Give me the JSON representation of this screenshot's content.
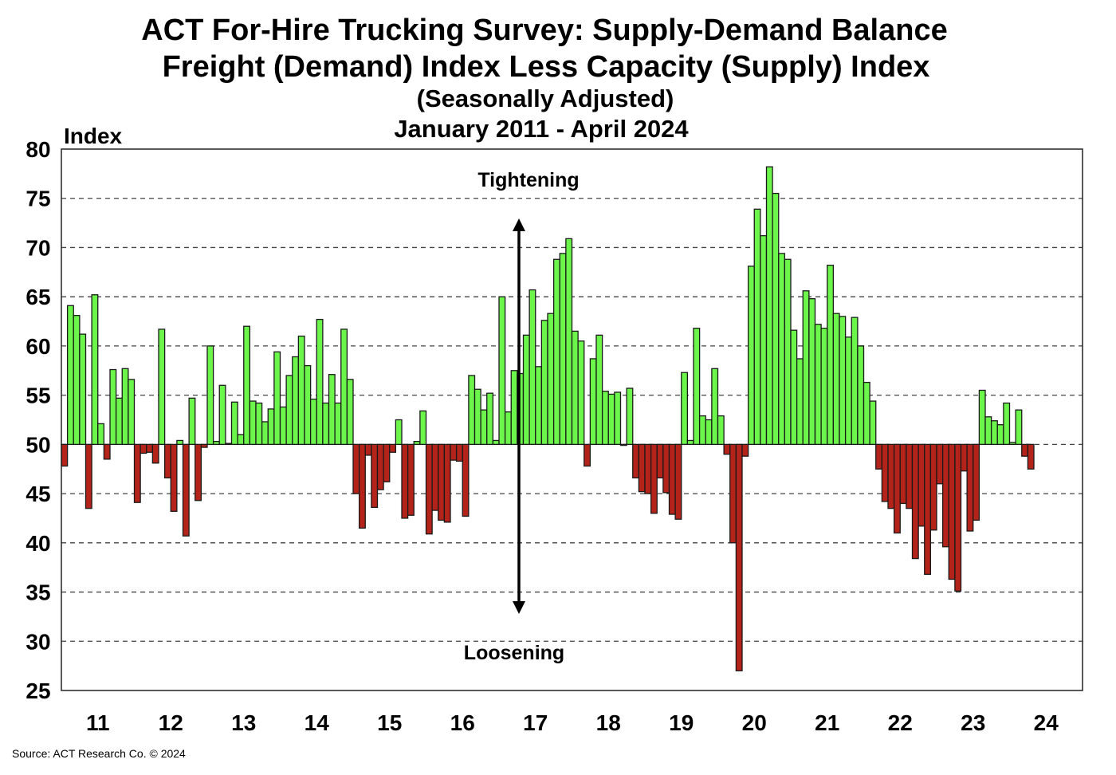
{
  "chart_data": {
    "type": "bar",
    "title": "ACT For-Hire Trucking Survey: Supply-Demand Balance",
    "subtitle": "Freight (Demand) Index Less Capacity (Supply) Index",
    "subtitle2": "(Seasonally Adjusted)",
    "date_range": "January 2011 - April 2024",
    "ylabel": "Index",
    "ylim": [
      25,
      80
    ],
    "yticks": [
      25,
      30,
      35,
      40,
      45,
      50,
      55,
      60,
      65,
      70,
      75,
      80
    ],
    "xticks": [
      "11",
      "12",
      "13",
      "14",
      "15",
      "16",
      "17",
      "18",
      "19",
      "20",
      "21",
      "22",
      "23",
      "24"
    ],
    "xrange": [
      "2011-01",
      "2024-12"
    ],
    "baseline": 50,
    "grid": true,
    "frequency": "monthly",
    "start": "2011-01",
    "values": [
      47.8,
      64.1,
      63.1,
      61.2,
      43.5,
      65.2,
      52.1,
      48.5,
      57.6,
      54.7,
      57.7,
      56.6,
      44.1,
      49.1,
      49.2,
      48.1,
      61.7,
      46.6,
      43.2,
      50.4,
      40.7,
      54.7,
      44.3,
      49.7,
      60.0,
      50.3,
      56.0,
      50.1,
      54.3,
      51.0,
      62.0,
      54.4,
      54.2,
      52.3,
      53.6,
      59.4,
      53.8,
      57.0,
      58.9,
      61.0,
      58.0,
      54.6,
      62.7,
      54.2,
      57.1,
      54.2,
      61.7,
      56.6,
      45.0,
      41.5,
      48.9,
      43.6,
      45.4,
      46.2,
      49.2,
      52.5,
      42.5,
      42.8,
      50.3,
      53.4,
      40.9,
      43.3,
      42.3,
      42.1,
      48.4,
      48.3,
      42.7,
      57.0,
      55.6,
      53.5,
      55.2,
      50.4,
      65.0,
      53.3,
      57.5,
      57.2,
      61.1,
      65.7,
      57.9,
      62.6,
      63.3,
      68.8,
      69.4,
      70.9,
      61.5,
      60.5,
      47.8,
      58.7,
      61.1,
      55.4,
      55.1,
      55.3,
      49.9,
      55.7,
      46.6,
      45.2,
      45.0,
      43.0,
      46.6,
      45.1,
      42.9,
      42.4,
      57.3,
      50.4,
      61.8,
      52.9,
      52.5,
      57.7,
      52.9,
      49.0,
      40.0,
      27.0,
      48.8,
      68.1,
      73.9,
      71.2,
      78.2,
      75.5,
      69.4,
      68.8,
      61.6,
      58.7,
      65.6,
      64.8,
      62.2,
      61.8,
      68.2,
      63.3,
      63.0,
      60.9,
      62.9,
      60.0,
      56.3,
      54.4,
      47.5,
      44.2,
      43.5,
      41.0,
      44.0,
      43.5,
      38.4,
      41.7,
      36.8,
      41.3,
      46.0,
      39.6,
      36.3,
      35.1,
      47.3,
      41.2,
      42.3,
      55.5,
      52.8,
      52.4,
      52.0,
      54.2,
      50.2,
      53.5,
      48.8,
      47.5
    ],
    "colors": {
      "above": "#6cf54a",
      "below": "#b3231a",
      "outline": "#1a1a1a"
    },
    "annotations": {
      "top": "Tightening",
      "bottom": "Loosening"
    }
  },
  "source": "Source: ACT Research Co. © 2024"
}
